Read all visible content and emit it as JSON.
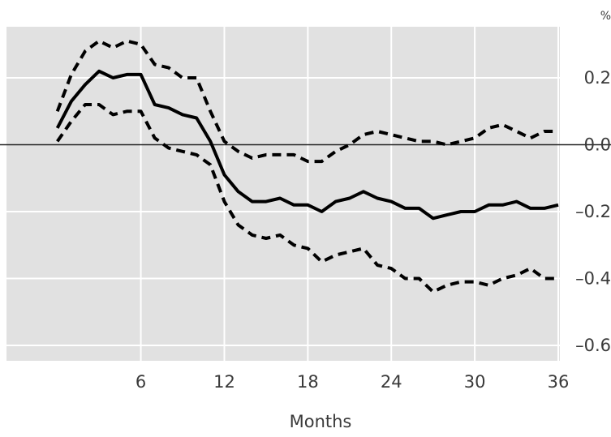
{
  "chart_data": {
    "type": "line",
    "title": "",
    "xlabel": "Months",
    "ylabel": "",
    "y_unit": "%",
    "xlim": [
      0,
      36
    ],
    "ylim": [
      -0.6,
      0.37
    ],
    "x_ticks": [
      6,
      12,
      18,
      24,
      30,
      36
    ],
    "x_tick_labels": [
      "6",
      "12",
      "18",
      "24",
      "30",
      "36"
    ],
    "y_ticks": [
      0.2,
      0.0,
      -0.2,
      -0.4,
      -0.6
    ],
    "y_tick_labels": [
      "0.2",
      "0.0",
      "–0.2",
      "–0.4",
      "–0.6"
    ],
    "grid": true,
    "zero_line": true,
    "background": "#e1e1e1",
    "x": [
      0,
      1,
      2,
      3,
      4,
      5,
      6,
      7,
      8,
      9,
      10,
      11,
      12,
      13,
      14,
      15,
      16,
      17,
      18,
      19,
      20,
      21,
      22,
      23,
      24,
      25,
      26,
      27,
      28,
      29,
      30,
      31,
      32,
      33,
      34,
      35,
      36
    ],
    "series": [
      {
        "style": "solid",
        "color": "#000000",
        "values": [
          0.05,
          0.13,
          0.18,
          0.22,
          0.2,
          0.21,
          0.21,
          0.12,
          0.11,
          0.09,
          0.08,
          0.01,
          -0.09,
          -0.14,
          -0.17,
          -0.17,
          -0.16,
          -0.18,
          -0.18,
          -0.2,
          -0.17,
          -0.16,
          -0.14,
          -0.16,
          -0.17,
          -0.19,
          -0.19,
          -0.22,
          -0.21,
          -0.2,
          -0.2,
          -0.18,
          -0.18,
          -0.17,
          -0.19,
          -0.19,
          -0.18
        ]
      },
      {
        "style": "dashed",
        "color": "#000000",
        "values": [
          0.1,
          0.21,
          0.28,
          0.31,
          0.29,
          0.31,
          0.3,
          0.24,
          0.23,
          0.2,
          0.2,
          0.1,
          0.01,
          -0.02,
          -0.04,
          -0.03,
          -0.03,
          -0.03,
          -0.05,
          -0.05,
          -0.02,
          0.0,
          0.03,
          0.04,
          0.03,
          0.02,
          0.01,
          0.01,
          0.0,
          0.01,
          0.02,
          0.05,
          0.06,
          0.04,
          0.02,
          0.04,
          0.04
        ]
      },
      {
        "style": "dashed",
        "color": "#000000",
        "values": [
          0.01,
          0.07,
          0.12,
          0.12,
          0.09,
          0.1,
          0.1,
          0.02,
          -0.01,
          -0.02,
          -0.03,
          -0.06,
          -0.17,
          -0.24,
          -0.27,
          -0.28,
          -0.27,
          -0.3,
          -0.31,
          -0.35,
          -0.33,
          -0.32,
          -0.31,
          -0.36,
          -0.37,
          -0.4,
          -0.4,
          -0.44,
          -0.42,
          -0.41,
          -0.41,
          -0.42,
          -0.4,
          -0.39,
          -0.37,
          -0.4,
          -0.4
        ]
      }
    ]
  }
}
